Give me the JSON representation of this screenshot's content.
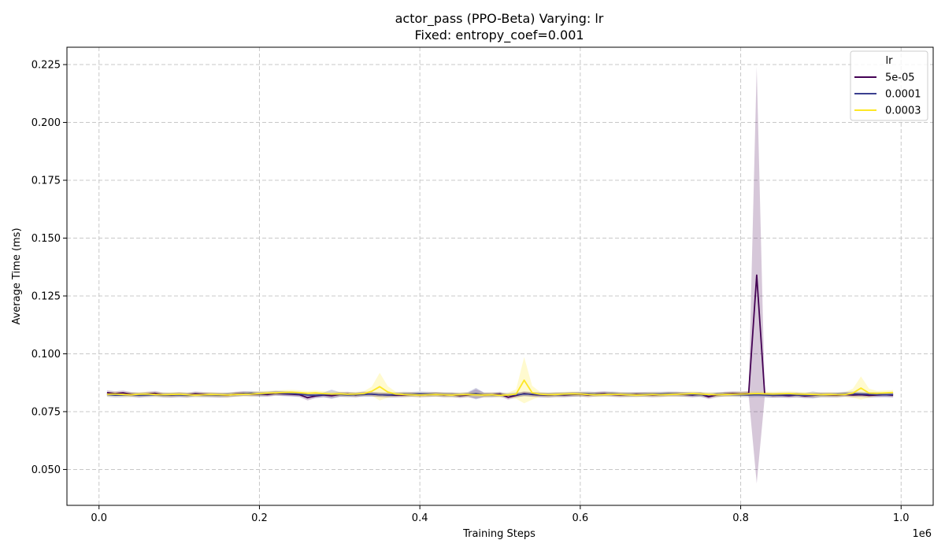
{
  "chart_data": {
    "type": "line",
    "title": "actor_pass (PPO-Beta) Varying: lr",
    "subtitle": "Fixed: entropy_coef=0.001",
    "xlabel": "Training Steps",
    "ylabel": "Average Time (ms)",
    "x_offset_label": "1e6",
    "xlim": [
      -0.04,
      1.04
    ],
    "ylim": [
      0.0345,
      0.2325
    ],
    "x_ticks": [
      0.0,
      0.2,
      0.4,
      0.6,
      0.8,
      1.0
    ],
    "x_tick_labels": [
      "0.0",
      "0.2",
      "0.4",
      "0.6",
      "0.8",
      "1.0"
    ],
    "y_ticks": [
      0.05,
      0.075,
      0.1,
      0.125,
      0.15,
      0.175,
      0.2,
      0.225
    ],
    "y_tick_labels": [
      "0.050",
      "0.075",
      "0.100",
      "0.125",
      "0.150",
      "0.175",
      "0.200",
      "0.225"
    ],
    "grid": true,
    "legend": {
      "title": "lr",
      "placement": "top-right"
    },
    "series": [
      {
        "name": "5e-05",
        "color": "#440154",
        "x": [
          0.01,
          0.02,
          0.03,
          0.04,
          0.05,
          0.06,
          0.07,
          0.08,
          0.09,
          0.1,
          0.11,
          0.12,
          0.13,
          0.14,
          0.15,
          0.16,
          0.17,
          0.18,
          0.19,
          0.2,
          0.21,
          0.22,
          0.23,
          0.24,
          0.25,
          0.26,
          0.27,
          0.28,
          0.29,
          0.3,
          0.31,
          0.32,
          0.33,
          0.34,
          0.35,
          0.36,
          0.37,
          0.38,
          0.39,
          0.4,
          0.41,
          0.42,
          0.43,
          0.44,
          0.45,
          0.46,
          0.47,
          0.48,
          0.49,
          0.5,
          0.51,
          0.52,
          0.53,
          0.54,
          0.55,
          0.56,
          0.57,
          0.58,
          0.59,
          0.6,
          0.61,
          0.62,
          0.63,
          0.64,
          0.65,
          0.66,
          0.67,
          0.68,
          0.69,
          0.7,
          0.71,
          0.72,
          0.73,
          0.74,
          0.75,
          0.76,
          0.77,
          0.78,
          0.79,
          0.8,
          0.81,
          0.82,
          0.83,
          0.84,
          0.85,
          0.86,
          0.87,
          0.88,
          0.89,
          0.9,
          0.91,
          0.92,
          0.93,
          0.94,
          0.95,
          0.96,
          0.97,
          0.98,
          0.99
        ],
        "y": [
          0.0832,
          0.0828,
          0.0831,
          0.0825,
          0.0822,
          0.0826,
          0.0829,
          0.0823,
          0.0821,
          0.0824,
          0.0822,
          0.0827,
          0.0825,
          0.0823,
          0.0822,
          0.0821,
          0.0826,
          0.0828,
          0.0825,
          0.0826,
          0.0824,
          0.0829,
          0.0827,
          0.0825,
          0.0823,
          0.081,
          0.0818,
          0.0822,
          0.0819,
          0.0824,
          0.0826,
          0.0822,
          0.0827,
          0.0825,
          0.0823,
          0.0822,
          0.0821,
          0.0822,
          0.0824,
          0.0822,
          0.0823,
          0.0825,
          0.0822,
          0.0823,
          0.0819,
          0.0822,
          0.0827,
          0.0822,
          0.0823,
          0.0826,
          0.0812,
          0.082,
          0.0828,
          0.0824,
          0.0822,
          0.0821,
          0.0823,
          0.0822,
          0.0824,
          0.0825,
          0.0822,
          0.0826,
          0.0828,
          0.0824,
          0.0822,
          0.0823,
          0.0825,
          0.0824,
          0.0822,
          0.0823,
          0.0825,
          0.0826,
          0.0824,
          0.0822,
          0.0825,
          0.0814,
          0.0822,
          0.0826,
          0.0828,
          0.0827,
          0.0829,
          0.134,
          0.0823,
          0.082,
          0.0821,
          0.0819,
          0.0822,
          0.0818,
          0.082,
          0.0823,
          0.0822,
          0.0821,
          0.0824,
          0.0822,
          0.0823,
          0.082,
          0.0822,
          0.0823,
          0.0821
        ],
        "band": [
          0.001,
          0.001,
          0.001,
          0.001,
          0.001,
          0.001,
          0.001,
          0.001,
          0.001,
          0.001,
          0.001,
          0.001,
          0.001,
          0.001,
          0.001,
          0.001,
          0.001,
          0.001,
          0.001,
          0.001,
          0.001,
          0.001,
          0.001,
          0.001,
          0.001,
          0.0012,
          0.001,
          0.001,
          0.001,
          0.001,
          0.001,
          0.001,
          0.001,
          0.001,
          0.001,
          0.001,
          0.001,
          0.001,
          0.001,
          0.001,
          0.001,
          0.001,
          0.001,
          0.001,
          0.001,
          0.001,
          0.002,
          0.001,
          0.001,
          0.001,
          0.001,
          0.001,
          0.001,
          0.001,
          0.001,
          0.001,
          0.001,
          0.001,
          0.001,
          0.001,
          0.001,
          0.001,
          0.001,
          0.001,
          0.001,
          0.001,
          0.001,
          0.001,
          0.001,
          0.001,
          0.001,
          0.001,
          0.001,
          0.001,
          0.001,
          0.001,
          0.001,
          0.001,
          0.001,
          0.001,
          0.001,
          0.09,
          0.001,
          0.001,
          0.001,
          0.001,
          0.001,
          0.001,
          0.001,
          0.001,
          0.001,
          0.001,
          0.001,
          0.001,
          0.001,
          0.001,
          0.001,
          0.001,
          0.001
        ]
      },
      {
        "name": "0.0001",
        "color": "#3b3f8f",
        "x": [
          0.01,
          0.02,
          0.03,
          0.04,
          0.05,
          0.06,
          0.07,
          0.08,
          0.09,
          0.1,
          0.11,
          0.12,
          0.13,
          0.14,
          0.15,
          0.16,
          0.17,
          0.18,
          0.19,
          0.2,
          0.21,
          0.22,
          0.23,
          0.24,
          0.25,
          0.26,
          0.27,
          0.28,
          0.29,
          0.3,
          0.31,
          0.32,
          0.33,
          0.34,
          0.35,
          0.36,
          0.37,
          0.38,
          0.39,
          0.4,
          0.41,
          0.42,
          0.43,
          0.44,
          0.45,
          0.46,
          0.47,
          0.48,
          0.49,
          0.5,
          0.51,
          0.52,
          0.53,
          0.54,
          0.55,
          0.56,
          0.57,
          0.58,
          0.59,
          0.6,
          0.61,
          0.62,
          0.63,
          0.64,
          0.65,
          0.66,
          0.67,
          0.68,
          0.69,
          0.7,
          0.71,
          0.72,
          0.73,
          0.74,
          0.75,
          0.76,
          0.77,
          0.78,
          0.79,
          0.8,
          0.81,
          0.82,
          0.83,
          0.84,
          0.85,
          0.86,
          0.87,
          0.88,
          0.89,
          0.9,
          0.91,
          0.92,
          0.93,
          0.94,
          0.95,
          0.96,
          0.97,
          0.98,
          0.99
        ],
        "y": [
          0.0824,
          0.0821,
          0.0822,
          0.0823,
          0.0821,
          0.0822,
          0.0823,
          0.0821,
          0.0822,
          0.0822,
          0.0821,
          0.0823,
          0.0822,
          0.0822,
          0.0821,
          0.0823,
          0.0824,
          0.0827,
          0.0829,
          0.0826,
          0.0828,
          0.083,
          0.0829,
          0.0828,
          0.0826,
          0.0822,
          0.0821,
          0.0823,
          0.0825,
          0.0824,
          0.0822,
          0.0823,
          0.0824,
          0.0826,
          0.0823,
          0.0822,
          0.0824,
          0.0826,
          0.0825,
          0.0827,
          0.0826,
          0.0825,
          0.0824,
          0.0823,
          0.0822,
          0.0825,
          0.0828,
          0.0823,
          0.0822,
          0.0823,
          0.0821,
          0.0823,
          0.0826,
          0.0825,
          0.0823,
          0.0822,
          0.0823,
          0.0824,
          0.0825,
          0.0826,
          0.0827,
          0.0825,
          0.0826,
          0.0827,
          0.0825,
          0.0824,
          0.0823,
          0.0825,
          0.0826,
          0.0826,
          0.0827,
          0.0826,
          0.0825,
          0.0824,
          0.0823,
          0.0822,
          0.0824,
          0.0825,
          0.0824,
          0.0823,
          0.0822,
          0.0823,
          0.0822,
          0.0821,
          0.0822,
          0.0823,
          0.0822,
          0.0821,
          0.0822,
          0.0822,
          0.0823,
          0.0824,
          0.0826,
          0.0827,
          0.0826,
          0.0825,
          0.0824,
          0.0823,
          0.0824
        ],
        "band": [
          0.001,
          0.001,
          0.001,
          0.001,
          0.001,
          0.001,
          0.001,
          0.001,
          0.001,
          0.001,
          0.001,
          0.001,
          0.001,
          0.001,
          0.001,
          0.001,
          0.001,
          0.001,
          0.001,
          0.001,
          0.001,
          0.001,
          0.001,
          0.001,
          0.001,
          0.001,
          0.001,
          0.001,
          0.002,
          0.001,
          0.001,
          0.001,
          0.001,
          0.001,
          0.001,
          0.001,
          0.001,
          0.001,
          0.001,
          0.001,
          0.001,
          0.001,
          0.001,
          0.001,
          0.001,
          0.001,
          0.0025,
          0.001,
          0.001,
          0.001,
          0.001,
          0.001,
          0.001,
          0.001,
          0.001,
          0.001,
          0.001,
          0.001,
          0.001,
          0.001,
          0.001,
          0.001,
          0.001,
          0.001,
          0.001,
          0.001,
          0.001,
          0.001,
          0.001,
          0.001,
          0.001,
          0.001,
          0.001,
          0.001,
          0.001,
          0.001,
          0.001,
          0.001,
          0.001,
          0.001,
          0.001,
          0.001,
          0.001,
          0.001,
          0.001,
          0.001,
          0.001,
          0.001,
          0.0015,
          0.001,
          0.001,
          0.001,
          0.001,
          0.001,
          0.001,
          0.001,
          0.001,
          0.001,
          0.001
        ]
      },
      {
        "name": "0.0003",
        "color": "#fde725",
        "x": [
          0.01,
          0.02,
          0.03,
          0.04,
          0.05,
          0.06,
          0.07,
          0.08,
          0.09,
          0.1,
          0.11,
          0.12,
          0.13,
          0.14,
          0.15,
          0.16,
          0.17,
          0.18,
          0.19,
          0.2,
          0.21,
          0.22,
          0.23,
          0.24,
          0.25,
          0.26,
          0.27,
          0.28,
          0.29,
          0.3,
          0.31,
          0.32,
          0.33,
          0.34,
          0.35,
          0.36,
          0.37,
          0.38,
          0.39,
          0.4,
          0.41,
          0.42,
          0.43,
          0.44,
          0.45,
          0.46,
          0.47,
          0.48,
          0.49,
          0.5,
          0.51,
          0.52,
          0.53,
          0.54,
          0.55,
          0.56,
          0.57,
          0.58,
          0.59,
          0.6,
          0.61,
          0.62,
          0.63,
          0.64,
          0.65,
          0.66,
          0.67,
          0.68,
          0.69,
          0.7,
          0.71,
          0.72,
          0.73,
          0.74,
          0.75,
          0.76,
          0.77,
          0.78,
          0.79,
          0.8,
          0.81,
          0.82,
          0.83,
          0.84,
          0.85,
          0.86,
          0.87,
          0.88,
          0.89,
          0.9,
          0.91,
          0.92,
          0.93,
          0.94,
          0.95,
          0.96,
          0.97,
          0.98,
          0.99
        ],
        "y": [
          0.0825,
          0.0826,
          0.0824,
          0.0823,
          0.0825,
          0.0826,
          0.0824,
          0.0823,
          0.0824,
          0.0825,
          0.0823,
          0.0822,
          0.0823,
          0.0824,
          0.0823,
          0.0822,
          0.0824,
          0.0825,
          0.0826,
          0.0828,
          0.083,
          0.0831,
          0.0833,
          0.0834,
          0.0832,
          0.0829,
          0.0831,
          0.0828,
          0.0826,
          0.0827,
          0.0825,
          0.0826,
          0.0828,
          0.0838,
          0.0858,
          0.0835,
          0.0826,
          0.0824,
          0.0823,
          0.0822,
          0.0823,
          0.0824,
          0.0823,
          0.0822,
          0.0823,
          0.0824,
          0.0823,
          0.0822,
          0.0823,
          0.0821,
          0.0822,
          0.0826,
          0.0886,
          0.0832,
          0.0825,
          0.0823,
          0.0824,
          0.0826,
          0.0827,
          0.0826,
          0.0824,
          0.0823,
          0.0824,
          0.0825,
          0.0824,
          0.0823,
          0.0822,
          0.0823,
          0.0824,
          0.0823,
          0.0824,
          0.0825,
          0.0826,
          0.0828,
          0.0826,
          0.0824,
          0.0823,
          0.0824,
          0.0825,
          0.0826,
          0.0827,
          0.0828,
          0.0827,
          0.0826,
          0.0827,
          0.0828,
          0.0826,
          0.0825,
          0.0824,
          0.0823,
          0.0824,
          0.0823,
          0.0824,
          0.083,
          0.0852,
          0.083,
          0.0829,
          0.0831,
          0.0833
        ],
        "band": [
          0.001,
          0.001,
          0.001,
          0.001,
          0.001,
          0.001,
          0.001,
          0.001,
          0.001,
          0.001,
          0.001,
          0.001,
          0.001,
          0.001,
          0.001,
          0.001,
          0.001,
          0.001,
          0.001,
          0.001,
          0.001,
          0.001,
          0.001,
          0.001,
          0.001,
          0.001,
          0.001,
          0.001,
          0.001,
          0.001,
          0.001,
          0.001,
          0.001,
          0.002,
          0.006,
          0.0025,
          0.001,
          0.001,
          0.001,
          0.001,
          0.001,
          0.001,
          0.001,
          0.001,
          0.001,
          0.001,
          0.001,
          0.001,
          0.001,
          0.001,
          0.001,
          0.002,
          0.01,
          0.003,
          0.001,
          0.001,
          0.001,
          0.001,
          0.001,
          0.001,
          0.001,
          0.001,
          0.001,
          0.001,
          0.001,
          0.001,
          0.001,
          0.001,
          0.001,
          0.001,
          0.001,
          0.001,
          0.001,
          0.001,
          0.001,
          0.001,
          0.001,
          0.001,
          0.001,
          0.001,
          0.001,
          0.001,
          0.001,
          0.001,
          0.001,
          0.001,
          0.001,
          0.001,
          0.001,
          0.001,
          0.001,
          0.001,
          0.001,
          0.002,
          0.005,
          0.002,
          0.001,
          0.001,
          0.001
        ]
      }
    ]
  }
}
